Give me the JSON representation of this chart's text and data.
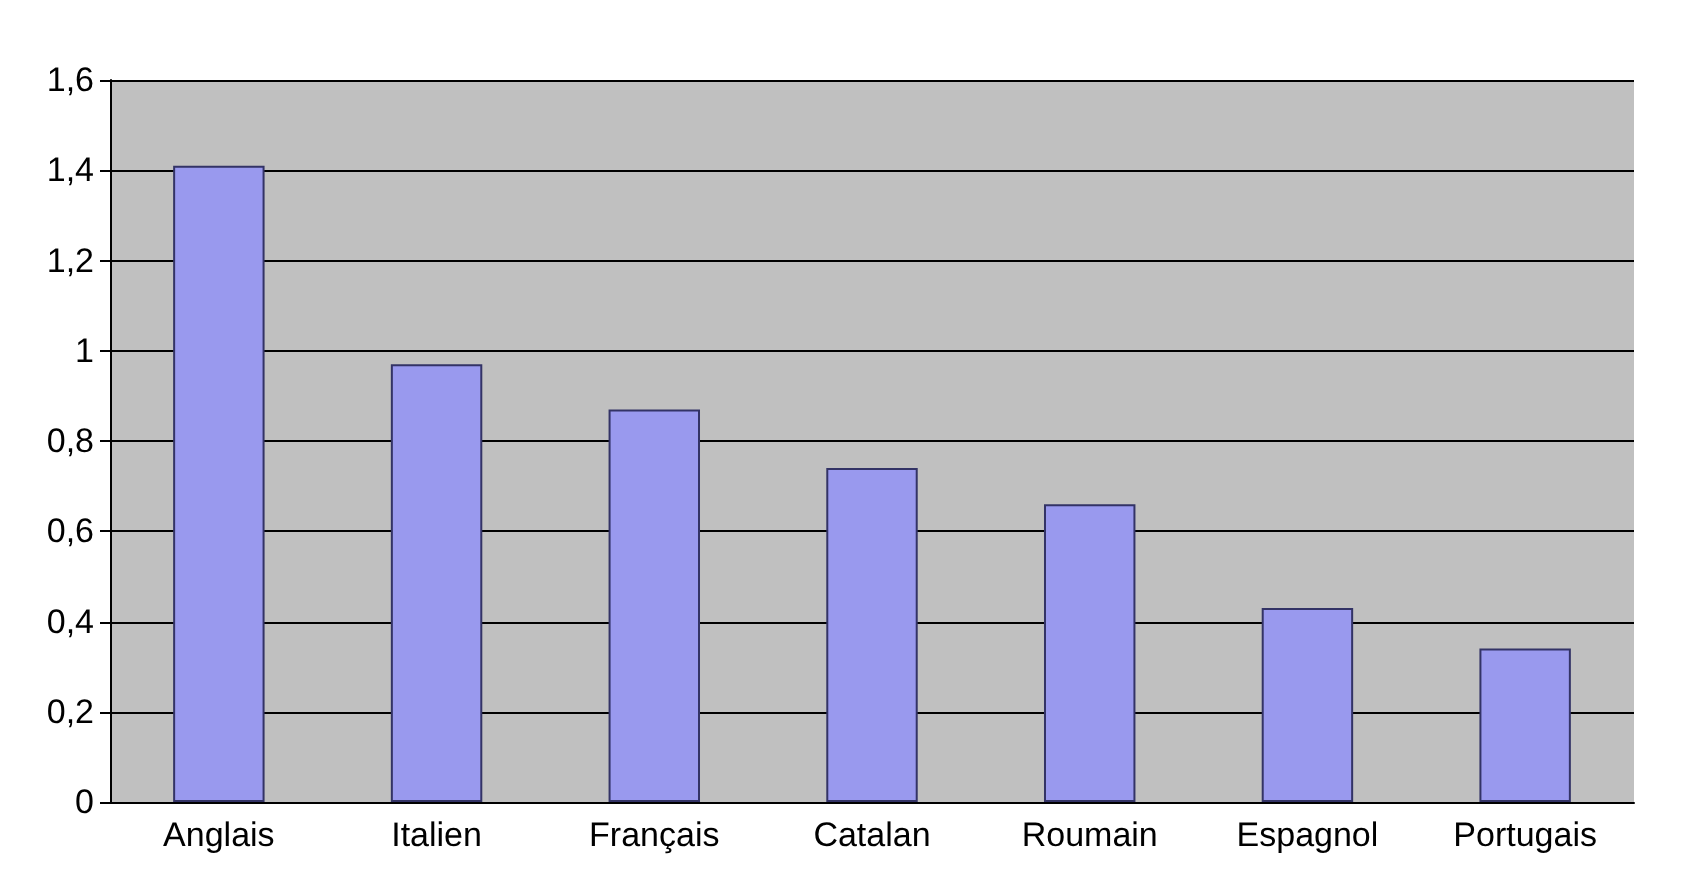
{
  "chart_data": {
    "type": "bar",
    "categories": [
      "Anglais",
      "Italien",
      "Français",
      "Catalan",
      "Roumain",
      "Espagnol",
      "Portugais"
    ],
    "values": [
      1.41,
      0.97,
      0.87,
      0.74,
      0.66,
      0.43,
      0.34
    ],
    "color": "#9999ee",
    "ylim": [
      0,
      1.6
    ],
    "yticks": [
      {
        "value": 0,
        "label": "0"
      },
      {
        "value": 0.2,
        "label": "0,2"
      },
      {
        "value": 0.4,
        "label": "0,4"
      },
      {
        "value": 0.6,
        "label": "0,6"
      },
      {
        "value": 0.8,
        "label": "0,8"
      },
      {
        "value": 1,
        "label": "1"
      },
      {
        "value": 1.2,
        "label": "1,2"
      },
      {
        "value": 1.4,
        "label": "1,4"
      },
      {
        "value": 1.6,
        "label": "1,6"
      }
    ],
    "grid": "y"
  }
}
